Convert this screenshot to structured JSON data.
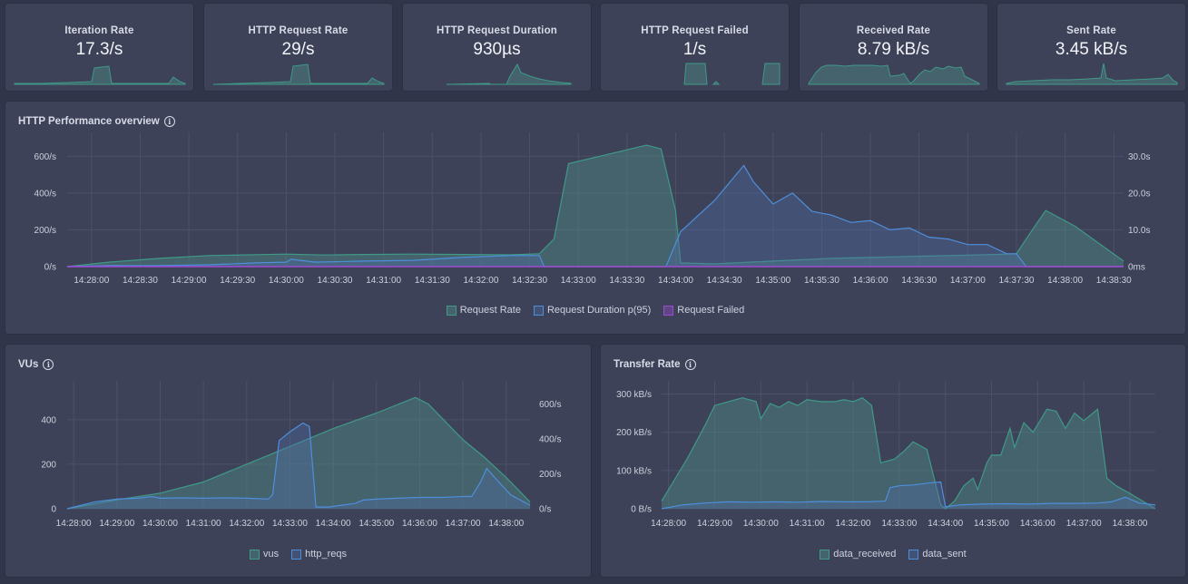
{
  "colors": {
    "green": "#3f9a88",
    "green_fill": "rgba(78,140,130,0.45)",
    "blue": "#4e8fdc",
    "blue_fill": "rgba(80,110,170,0.35)",
    "purple": "#a04bd4",
    "grid": "#4c5168",
    "tick": "#cdd0dc"
  },
  "stats": [
    {
      "title": "Iteration Rate",
      "value": "17.3/s"
    },
    {
      "title": "HTTP Request Rate",
      "value": "29/s"
    },
    {
      "title": "HTTP Request Duration",
      "value": "930µs"
    },
    {
      "title": "HTTP Request Failed",
      "value": "1/s"
    },
    {
      "title": "Received Rate",
      "value": "8.79 kB/s"
    },
    {
      "title": "Sent Rate",
      "value": "3.45 kB/s"
    }
  ],
  "overview": {
    "title": "HTTP Performance overview",
    "legend": [
      "Request Rate",
      "Request Duration p(95)",
      "Request Failed"
    ]
  },
  "vus_panel": {
    "title": "VUs",
    "legend": [
      "vus",
      "http_reqs"
    ]
  },
  "transfer_panel": {
    "title": "Transfer Rate",
    "legend": [
      "data_received",
      "data_sent"
    ]
  },
  "chart_data": [
    {
      "type": "area",
      "title": "HTTP Performance overview",
      "x_start_minutes": 867.75,
      "x_end_minutes": 878.6,
      "x_tick_labels": [
        "14:28:00",
        "14:28:30",
        "14:29:00",
        "14:29:30",
        "14:30:00",
        "14:30:30",
        "14:31:00",
        "14:31:30",
        "14:32:00",
        "14:32:30",
        "14:33:00",
        "14:33:30",
        "14:34:00",
        "14:34:30",
        "14:35:00",
        "14:35:30",
        "14:36:00",
        "14:36:30",
        "14:37:00",
        "14:37:30",
        "14:38:00",
        "14:38:30"
      ],
      "left_axis": {
        "ticks": [
          "0/s",
          "200/s",
          "400/s",
          "600/s"
        ],
        "ylim": [
          0,
          700
        ]
      },
      "right_axis": {
        "ticks": [
          "0ms",
          "10.0s",
          "20.0s",
          "30.0s"
        ],
        "ylim": [
          0,
          35
        ]
      },
      "series": [
        {
          "name": "Request Rate",
          "axis": "left",
          "points": [
            [
              867.75,
              0
            ],
            [
              868.2,
              25
            ],
            [
              868.7,
              45
            ],
            [
              869.2,
              60
            ],
            [
              869.7,
              65
            ],
            [
              870.0,
              68
            ],
            [
              870.4,
              63
            ],
            [
              870.8,
              66
            ],
            [
              871.3,
              68
            ],
            [
              871.8,
              66
            ],
            [
              872.3,
              64
            ],
            [
              872.6,
              70
            ],
            [
              872.75,
              150
            ],
            [
              872.9,
              560
            ],
            [
              873.3,
              610
            ],
            [
              873.7,
              660
            ],
            [
              873.85,
              640
            ],
            [
              874.0,
              300
            ],
            [
              874.05,
              20
            ],
            [
              874.4,
              15
            ],
            [
              874.8,
              25
            ],
            [
              875.2,
              35
            ],
            [
              875.6,
              45
            ],
            [
              876.0,
              50
            ],
            [
              876.4,
              55
            ],
            [
              876.8,
              60
            ],
            [
              877.2,
              65
            ],
            [
              877.5,
              70
            ],
            [
              877.6,
              150
            ],
            [
              877.8,
              305
            ],
            [
              878.1,
              220
            ],
            [
              878.6,
              30
            ]
          ]
        },
        {
          "name": "Request Duration p(95)",
          "axis": "right",
          "points": [
            [
              867.75,
              0
            ],
            [
              868.2,
              0.3
            ],
            [
              868.7,
              0.3
            ],
            [
              869.2,
              0.5
            ],
            [
              869.7,
              1.0
            ],
            [
              870.0,
              1.2
            ],
            [
              870.05,
              2.0
            ],
            [
              870.3,
              1.2
            ],
            [
              870.8,
              1.5
            ],
            [
              871.3,
              1.7
            ],
            [
              871.8,
              2.5
            ],
            [
              872.3,
              3.0
            ],
            [
              872.6,
              3.0
            ],
            [
              872.65,
              0
            ],
            [
              873.9,
              0
            ],
            [
              874.05,
              9.5
            ],
            [
              874.4,
              18
            ],
            [
              874.7,
              27.5
            ],
            [
              874.8,
              23
            ],
            [
              875.0,
              17
            ],
            [
              875.2,
              20
            ],
            [
              875.4,
              15
            ],
            [
              875.6,
              14
            ],
            [
              875.8,
              12
            ],
            [
              876.0,
              12.5
            ],
            [
              876.2,
              10
            ],
            [
              876.4,
              10.5
            ],
            [
              876.6,
              8
            ],
            [
              876.8,
              7.5
            ],
            [
              877.0,
              6
            ],
            [
              877.2,
              6
            ],
            [
              877.4,
              3.5
            ],
            [
              877.5,
              3.5
            ],
            [
              877.6,
              0
            ],
            [
              878.6,
              0
            ]
          ]
        },
        {
          "name": "Request Failed",
          "axis": "left",
          "points": [
            [
              867.75,
              0
            ],
            [
              878.6,
              0
            ]
          ]
        }
      ]
    },
    {
      "type": "area",
      "title": "VUs",
      "x_start_minutes": 867.85,
      "x_end_minutes": 878.55,
      "x_tick_labels": [
        "14:28:00",
        "14:29:00",
        "14:30:00",
        "14:31:00",
        "14:32:00",
        "14:33:00",
        "14:34:00",
        "14:35:00",
        "14:36:00",
        "14:37:00",
        "14:38:00"
      ],
      "left_axis": {
        "ticks": [
          "0",
          "200",
          "400"
        ],
        "ylim": [
          0,
          550
        ]
      },
      "right_axis": {
        "ticks": [
          "0/s",
          "200/s",
          "400/s",
          "600/s"
        ],
        "ylim": [
          0,
          700
        ]
      },
      "series": [
        {
          "name": "vus",
          "axis": "left",
          "points": [
            [
              867.85,
              0
            ],
            [
              869.0,
              40
            ],
            [
              870.0,
              70
            ],
            [
              871.0,
              120
            ],
            [
              872.0,
              200
            ],
            [
              873.0,
              280
            ],
            [
              874.0,
              360
            ],
            [
              875.0,
              430
            ],
            [
              875.9,
              500
            ],
            [
              876.2,
              470
            ],
            [
              877.0,
              310
            ],
            [
              877.5,
              230
            ],
            [
              878.0,
              140
            ],
            [
              878.55,
              30
            ]
          ]
        },
        {
          "name": "http_reqs",
          "axis": "right",
          "points": [
            [
              867.85,
              0
            ],
            [
              868.5,
              40
            ],
            [
              869.0,
              55
            ],
            [
              869.5,
              60
            ],
            [
              869.8,
              70
            ],
            [
              870.0,
              60
            ],
            [
              870.5,
              62
            ],
            [
              871.0,
              60
            ],
            [
              871.5,
              62
            ],
            [
              872.0,
              60
            ],
            [
              872.5,
              55
            ],
            [
              872.6,
              80
            ],
            [
              872.75,
              390
            ],
            [
              873.0,
              440
            ],
            [
              873.3,
              490
            ],
            [
              873.45,
              470
            ],
            [
              873.6,
              10
            ],
            [
              873.9,
              10
            ],
            [
              874.2,
              20
            ],
            [
              874.5,
              30
            ],
            [
              874.7,
              50
            ],
            [
              875.0,
              55
            ],
            [
              875.5,
              60
            ],
            [
              876.0,
              65
            ],
            [
              876.5,
              65
            ],
            [
              877.0,
              70
            ],
            [
              877.2,
              70
            ],
            [
              877.4,
              150
            ],
            [
              877.55,
              230
            ],
            [
              877.8,
              160
            ],
            [
              878.1,
              80
            ],
            [
              878.55,
              20
            ]
          ]
        }
      ]
    },
    {
      "type": "area",
      "title": "Transfer Rate",
      "x_start_minutes": 867.85,
      "x_end_minutes": 878.55,
      "x_tick_labels": [
        "14:28:00",
        "14:29:00",
        "14:30:00",
        "14:31:00",
        "14:32:00",
        "14:33:00",
        "14:34:00",
        "14:35:00",
        "14:36:00",
        "14:37:00",
        "14:38:00"
      ],
      "left_axis": {
        "ticks": [
          "0 B/s",
          "100 kB/s",
          "200 kB/s",
          "300 kB/s"
        ],
        "ylim": [
          0,
          320
        ]
      },
      "series": [
        {
          "name": "data_received",
          "axis": "left",
          "points": [
            [
              867.85,
              20
            ],
            [
              868.1,
              70
            ],
            [
              868.4,
              130
            ],
            [
              868.8,
              220
            ],
            [
              869.0,
              270
            ],
            [
              869.3,
              280
            ],
            [
              869.6,
              290
            ],
            [
              869.9,
              280
            ],
            [
              870.0,
              235
            ],
            [
              870.2,
              275
            ],
            [
              870.4,
              265
            ],
            [
              870.6,
              280
            ],
            [
              870.8,
              270
            ],
            [
              871.0,
              285
            ],
            [
              871.3,
              280
            ],
            [
              871.6,
              280
            ],
            [
              871.8,
              285
            ],
            [
              872.0,
              280
            ],
            [
              872.2,
              290
            ],
            [
              872.4,
              270
            ],
            [
              872.6,
              120
            ],
            [
              872.9,
              130
            ],
            [
              873.1,
              150
            ],
            [
              873.3,
              175
            ],
            [
              873.6,
              155
            ],
            [
              873.9,
              10
            ],
            [
              874.0,
              0
            ],
            [
              874.2,
              20
            ],
            [
              874.4,
              60
            ],
            [
              874.6,
              80
            ],
            [
              874.7,
              50
            ],
            [
              874.9,
              120
            ],
            [
              875.0,
              140
            ],
            [
              875.2,
              140
            ],
            [
              875.4,
              210
            ],
            [
              875.5,
              160
            ],
            [
              875.7,
              225
            ],
            [
              875.9,
              200
            ],
            [
              876.2,
              260
            ],
            [
              876.4,
              255
            ],
            [
              876.6,
              210
            ],
            [
              876.8,
              250
            ],
            [
              877.0,
              230
            ],
            [
              877.3,
              260
            ],
            [
              877.5,
              80
            ],
            [
              877.7,
              60
            ],
            [
              878.0,
              40
            ],
            [
              878.55,
              0
            ]
          ]
        },
        {
          "name": "data_sent",
          "axis": "left",
          "points": [
            [
              867.85,
              0
            ],
            [
              868.3,
              10
            ],
            [
              868.8,
              15
            ],
            [
              869.3,
              18
            ],
            [
              869.8,
              17
            ],
            [
              870.3,
              18
            ],
            [
              870.8,
              17
            ],
            [
              871.3,
              19
            ],
            [
              871.8,
              18
            ],
            [
              872.3,
              18
            ],
            [
              872.7,
              20
            ],
            [
              872.8,
              55
            ],
            [
              873.0,
              60
            ],
            [
              873.3,
              62
            ],
            [
              873.7,
              68
            ],
            [
              873.9,
              70
            ],
            [
              874.0,
              5
            ],
            [
              874.3,
              10
            ],
            [
              874.8,
              12
            ],
            [
              875.3,
              13
            ],
            [
              875.8,
              12
            ],
            [
              876.3,
              14
            ],
            [
              876.8,
              14
            ],
            [
              877.3,
              15
            ],
            [
              877.6,
              18
            ],
            [
              877.9,
              30
            ],
            [
              878.2,
              15
            ],
            [
              878.55,
              10
            ]
          ]
        }
      ]
    }
  ]
}
